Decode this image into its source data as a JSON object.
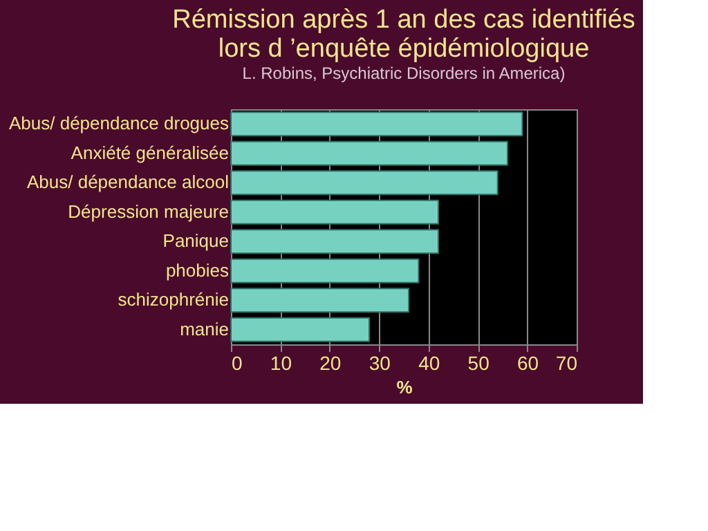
{
  "chart_data": {
    "type": "bar",
    "orientation": "horizontal",
    "title": "Rémission après 1 an des cas identifiés\nlors d ’enquête épidémiologique",
    "subtitle": "L. Robins, Psychiatric Disorders in America)",
    "xlabel": "%",
    "categories": [
      "Abus/ dépendance drogues",
      "Anxiété généralisée",
      "Abus/ dépendance alcool",
      "Dépression majeure",
      "Panique ",
      "phobies",
      "schizophrénie",
      "manie"
    ],
    "values": [
      59,
      56,
      54,
      42,
      42,
      38,
      36,
      28
    ],
    "color": "#76d1c0",
    "xlim": [
      0,
      70
    ],
    "xticks": [
      0,
      10,
      20,
      30,
      40,
      50,
      60,
      70
    ],
    "grid": "x"
  }
}
